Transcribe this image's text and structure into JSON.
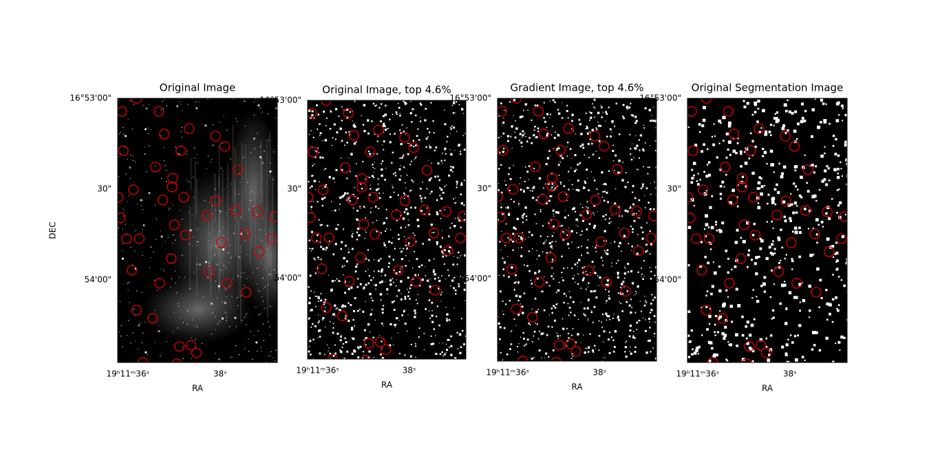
{
  "sources": {
    "ra": [
      36.19,
      35.87,
      36.67,
      36.79,
      37.33,
      37.9,
      38.1,
      35.9,
      37.15,
      38.39,
      36.6,
      36.97,
      36.96,
      36.12,
      36.76,
      37.21,
      37.91,
      35.79,
      35.84,
      37.72,
      38.34,
      38.81,
      39.18,
      37.01,
      37.25,
      35.97,
      36.25,
      38.54,
      38.03,
      39.12,
      38.85,
      36.94,
      36.09,
      37.76,
      36.69,
      38.15,
      38.57,
      36.19,
      36.54,
      37.12,
      37.37,
      37.49,
      36.33,
      37.06
    ],
    "dec": [
      0,
      4.3,
      4.3,
      11.8,
      10,
      12.5,
      15.9,
      17.3,
      17.3,
      23.6,
      22.7,
      26.4,
      29.3,
      30.2,
      33.6,
      32.7,
      33.9,
      32.7,
      39.5,
      38.6,
      37,
      37.5,
      39.1,
      41.8,
      45.2,
      46.4,
      46.4,
      44.8,
      47.7,
      46.4,
      50.7,
      53,
      56.8,
      57.3,
      61.1,
      61.1,
      64.1,
      70,
      72.7,
      82,
      81.6,
      84.1,
      87.3,
      87.7
    ]
  },
  "chart_data": [
    {
      "type": "image",
      "style": "grayscale",
      "title": "Original Image",
      "xlabel": "RA",
      "ylabel": "DEC",
      "xlim": [
        35.78,
        39.24
      ],
      "ylim": [
        0,
        87.3
      ],
      "xticks": [
        {
          "value": 36,
          "label": "19ʰ11ᵐ36ˢ"
        },
        {
          "value": 38,
          "label": "38ˢ"
        }
      ],
      "yticks": [
        {
          "value": 0,
          "label": "16°53'00\""
        },
        {
          "value": 30,
          "label": "30\""
        },
        {
          "value": 60,
          "label": "54'00\""
        }
      ],
      "marker_color": "#d40000"
    },
    {
      "type": "image",
      "style": "binary",
      "title": "Original Image, top 4.6%",
      "xlabel": "RA",
      "xlim": [
        35.78,
        39.24
      ],
      "ylim": [
        0,
        87.3
      ],
      "xticks": [
        {
          "value": 36,
          "label": "19ʰ11ᵐ36ˢ"
        },
        {
          "value": 38,
          "label": "38ˢ"
        }
      ],
      "yticks": [
        {
          "value": 0,
          "label": "16°53'00\""
        },
        {
          "value": 30,
          "label": "30\""
        },
        {
          "value": 60,
          "label": "54'00\""
        }
      ],
      "marker_color": "#d40000"
    },
    {
      "type": "image",
      "style": "binary",
      "title": "Gradient Image, top 4.6%",
      "xlabel": "RA",
      "xlim": [
        35.78,
        39.24
      ],
      "ylim": [
        0,
        87.3
      ],
      "xticks": [
        {
          "value": 36,
          "label": "19ʰ11ᵐ36ˢ"
        },
        {
          "value": 38,
          "label": "38ˢ"
        }
      ],
      "yticks": [
        {
          "value": 0,
          "label": "16°53'00\""
        },
        {
          "value": 30,
          "label": "30\""
        },
        {
          "value": 60,
          "label": "54'00\""
        }
      ],
      "marker_color": "#d40000"
    },
    {
      "type": "image",
      "style": "segmentation",
      "title": "Original Segmentation Image",
      "xlabel": "RA",
      "xlim": [
        35.78,
        39.24
      ],
      "ylim": [
        0,
        87.3
      ],
      "xticks": [
        {
          "value": 36,
          "label": "19ʰ11ᵐ36ˢ"
        },
        {
          "value": 38,
          "label": "38ˢ"
        }
      ],
      "yticks": [
        {
          "value": 0,
          "label": "16°53'00\""
        },
        {
          "value": 30,
          "label": "30\""
        },
        {
          "value": 60,
          "label": "54'00\""
        }
      ],
      "marker_color": "#d40000"
    }
  ]
}
